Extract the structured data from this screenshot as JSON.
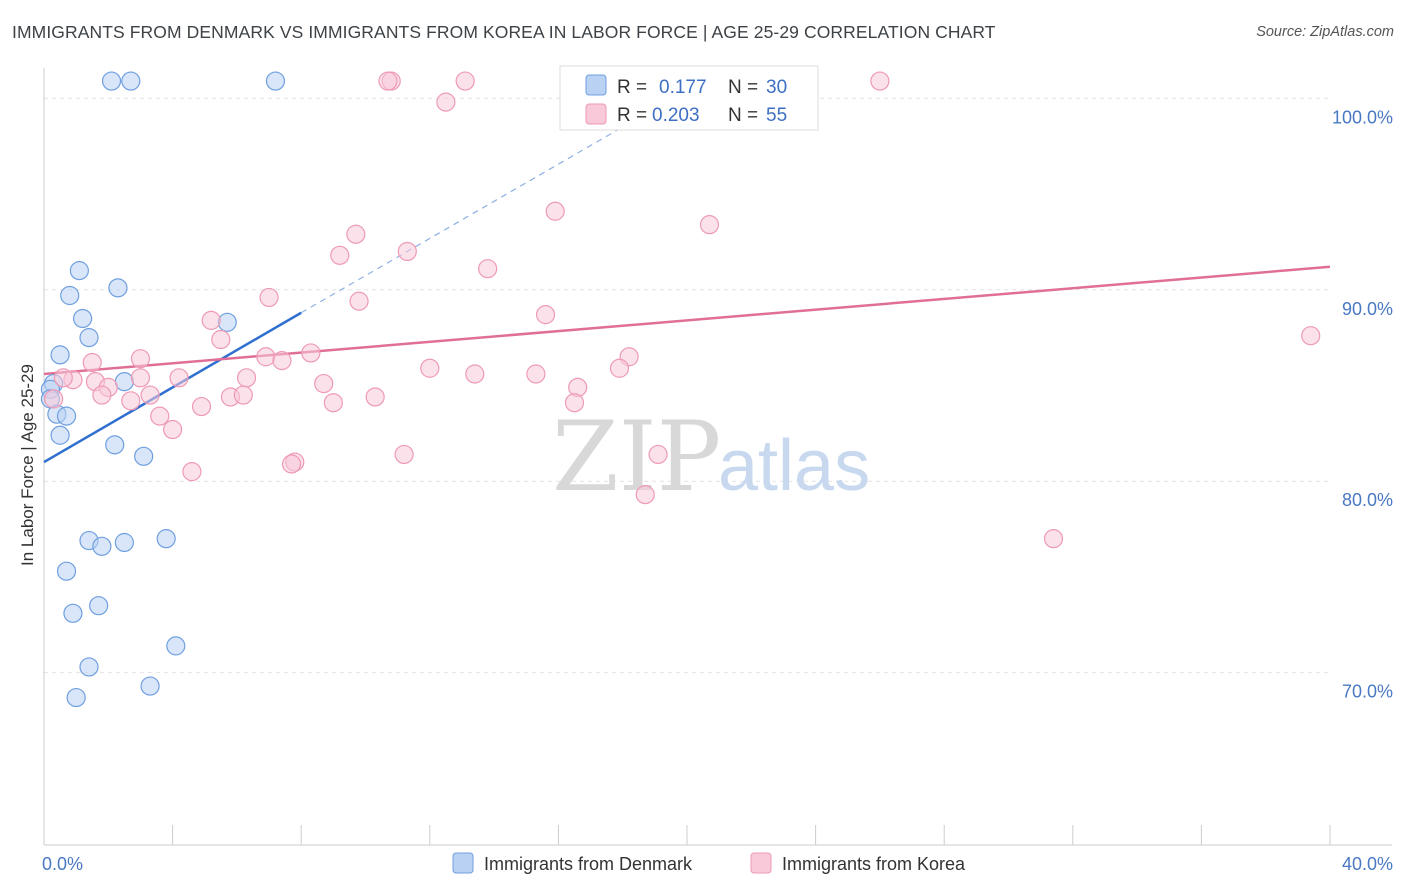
{
  "title": "IMMIGRANTS FROM DENMARK VS IMMIGRANTS FROM KOREA IN LABOR FORCE | AGE 25-29 CORRELATION CHART",
  "source": "Source: ZipAtlas.com",
  "watermark": {
    "zip": "ZIP",
    "atlas": "atlas"
  },
  "chart_data": {
    "type": "scatter",
    "ylabel": "In Labor Force | Age 25-29",
    "xlim": [
      0,
      40
    ],
    "ylim": [
      61,
      102
    ],
    "x_tick_labels": [
      {
        "value": 0,
        "label": "0.0%"
      },
      {
        "value": 40,
        "label": "40.0%"
      }
    ],
    "y_tick_labels": [
      {
        "value": 100,
        "label": "100.0%"
      },
      {
        "value": 90,
        "label": "90.0%"
      },
      {
        "value": 80,
        "label": "80.0%"
      },
      {
        "value": 70,
        "label": "70.0%"
      }
    ],
    "grid": true,
    "legend_position": "top-center",
    "series": [
      {
        "name": "Immigrants from Denmark",
        "color": "#6f9fe0",
        "fill": "#b9d2f4",
        "line_color": "#2f6fd0",
        "r_label": "R =",
        "r_value": "0.177",
        "n_label": "N =",
        "n_value": "30",
        "trend": {
          "x": [
            0,
            8
          ],
          "y": [
            81.0,
            88.8
          ],
          "dashed_to": [
            18,
            98.5
          ]
        },
        "points": [
          [
            2.1,
            100.9
          ],
          [
            2.7,
            100.9
          ],
          [
            7.2,
            100.9
          ],
          [
            1.1,
            91.0
          ],
          [
            0.8,
            89.7
          ],
          [
            1.2,
            88.5
          ],
          [
            1.4,
            87.5
          ],
          [
            5.7,
            88.3
          ],
          [
            2.3,
            90.1
          ],
          [
            0.5,
            86.6
          ],
          [
            0.3,
            85.1
          ],
          [
            0.2,
            84.8
          ],
          [
            2.5,
            85.2
          ],
          [
            0.2,
            84.3
          ],
          [
            0.4,
            83.5
          ],
          [
            0.7,
            83.4
          ],
          [
            0.5,
            82.4
          ],
          [
            2.2,
            81.9
          ],
          [
            3.1,
            81.3
          ],
          [
            1.4,
            76.9
          ],
          [
            1.8,
            76.6
          ],
          [
            2.5,
            76.8
          ],
          [
            3.8,
            77.0
          ],
          [
            0.7,
            75.3
          ],
          [
            0.9,
            73.1
          ],
          [
            1.7,
            73.5
          ],
          [
            4.1,
            71.4
          ],
          [
            1.4,
            70.3
          ],
          [
            3.3,
            69.3
          ],
          [
            1.0,
            68.7
          ]
        ]
      },
      {
        "name": "Immigrants from Korea",
        "color": "#ee9ab5",
        "fill": "#f8c9d8",
        "line_color": "#e06f98",
        "r_label": "R =",
        "r_value": "0.203",
        "n_label": "N =",
        "n_value": "55",
        "trend": {
          "x": [
            0,
            40
          ],
          "y": [
            85.6,
            91.2
          ]
        },
        "points": [
          [
            10.8,
            100.9
          ],
          [
            13.1,
            100.9
          ],
          [
            26.0,
            100.9
          ],
          [
            12.5,
            99.8
          ],
          [
            15.9,
            94.1
          ],
          [
            20.7,
            93.4
          ],
          [
            9.7,
            92.9
          ],
          [
            9.2,
            91.8
          ],
          [
            11.3,
            92.0
          ],
          [
            13.8,
            91.1
          ],
          [
            7.0,
            89.6
          ],
          [
            9.8,
            89.4
          ],
          [
            15.6,
            88.7
          ],
          [
            5.2,
            88.4
          ],
          [
            5.5,
            87.4
          ],
          [
            8.3,
            86.7
          ],
          [
            6.9,
            86.5
          ],
          [
            7.4,
            86.3
          ],
          [
            12.0,
            85.9
          ],
          [
            18.2,
            86.5
          ],
          [
            17.9,
            85.9
          ],
          [
            1.5,
            86.2
          ],
          [
            0.9,
            85.3
          ],
          [
            1.6,
            85.2
          ],
          [
            3.0,
            86.4
          ],
          [
            3.0,
            85.4
          ],
          [
            4.2,
            85.4
          ],
          [
            6.3,
            85.4
          ],
          [
            13.4,
            85.6
          ],
          [
            15.3,
            85.6
          ],
          [
            8.7,
            85.1
          ],
          [
            2.0,
            84.9
          ],
          [
            1.8,
            84.5
          ],
          [
            3.3,
            84.5
          ],
          [
            5.8,
            84.4
          ],
          [
            6.2,
            84.5
          ],
          [
            10.3,
            84.4
          ],
          [
            16.6,
            84.9
          ],
          [
            9.0,
            84.1
          ],
          [
            2.7,
            84.2
          ],
          [
            0.3,
            84.3
          ],
          [
            16.5,
            84.1
          ],
          [
            4.9,
            83.9
          ],
          [
            3.6,
            83.4
          ],
          [
            4.0,
            82.7
          ],
          [
            11.2,
            81.4
          ],
          [
            19.1,
            81.4
          ],
          [
            7.8,
            81.0
          ],
          [
            7.7,
            80.9
          ],
          [
            4.6,
            80.5
          ],
          [
            18.7,
            79.3
          ],
          [
            31.4,
            77.0
          ],
          [
            39.4,
            87.6
          ],
          [
            10.7,
            100.9
          ],
          [
            0.6,
            85.4
          ]
        ]
      }
    ]
  }
}
